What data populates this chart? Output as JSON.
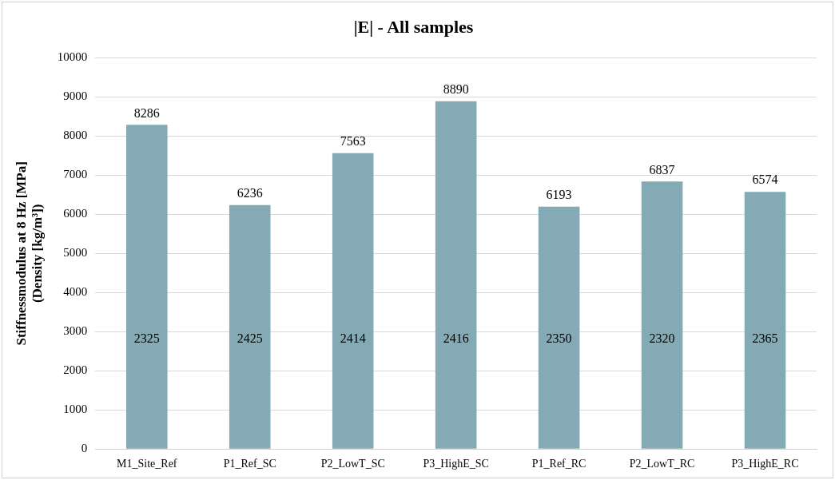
{
  "chart_data": {
    "type": "bar",
    "title": "|E| - All samples",
    "ylabel": "Stiffnessmodulus at 8 Hz [MPa]\n(Density [kg/m³])",
    "categories": [
      "M1_Site_Ref",
      "P1_Ref_SC",
      "P2_LowT_SC",
      "P3_HighE_SC",
      "P1_Ref_RC",
      "P2_LowT_RC",
      "P3_HighE_RC"
    ],
    "series": [
      {
        "color": "#84abb5",
        "values": [
          8286,
          6236,
          7563,
          8890,
          6193,
          6837,
          6574
        ]
      }
    ],
    "annotations": [
      "2325",
      "2425",
      "2414",
      "2416",
      "2350",
      "2320",
      "2365"
    ],
    "ylim": [
      0,
      10000
    ],
    "yticks": [
      0,
      1000,
      2000,
      3000,
      4000,
      5000,
      6000,
      7000,
      8000,
      9000,
      10000
    ],
    "grid": "y",
    "legend": false,
    "data_labels": true
  }
}
